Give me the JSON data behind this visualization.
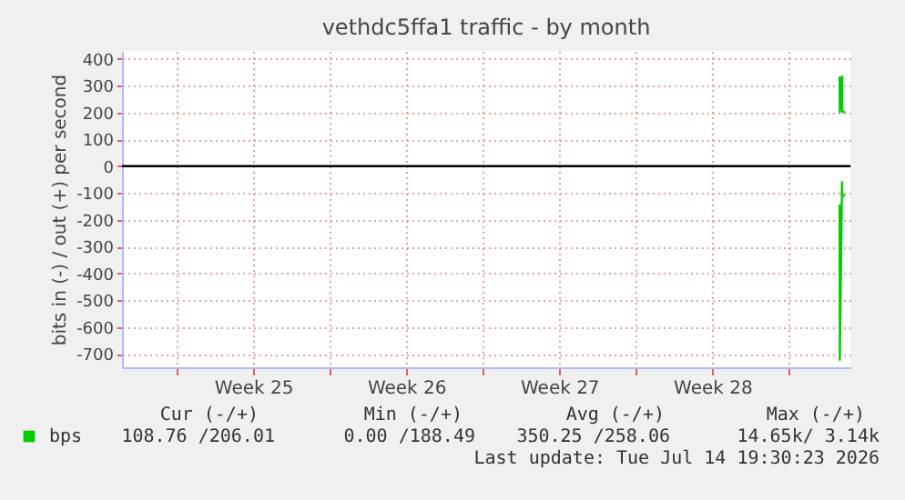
{
  "chart_data": {
    "type": "line",
    "title": "vethdc5ffa1 traffic - by month",
    "ylabel": "bits in (-) / out (+) per second",
    "x": [
      "2026-07-14T07:40",
      "2026-07-14T07:55",
      "2026-07-14T10:20",
      "2026-07-14T10:35",
      "2026-07-14T13:55"
    ],
    "series": [
      {
        "name": "bps",
        "color": "#00cc00",
        "values": [
          334,
          203,
          334,
          203,
          203
        ]
      },
      {
        "color": "#00cc00",
        "values": [
          -143,
          -722,
          -60,
          -110,
          -110
        ]
      }
    ],
    "xlim": [
      "2026-06-11T12:00",
      "2026-07-14T19:30"
    ],
    "xticks": [
      {
        "value": "2026-06-14",
        "label": null
      },
      {
        "value": "2026-06-17T12:00",
        "label": "Week 25"
      },
      {
        "value": "2026-06-21",
        "label": null
      },
      {
        "value": "2026-06-24T12:00",
        "label": "Week 26"
      },
      {
        "value": "2026-06-28",
        "label": null
      },
      {
        "value": "2026-07-01T12:00",
        "label": "Week 27"
      },
      {
        "value": "2026-07-05",
        "label": null
      },
      {
        "value": "2026-07-08T12:00",
        "label": "Week 28"
      },
      {
        "value": "2026-07-12",
        "label": null
      }
    ],
    "ylim": [
      -750,
      430
    ],
    "yticks": [
      -700,
      -600,
      -500,
      -400,
      -300,
      -200,
      -100,
      0,
      100,
      200,
      300,
      400
    ],
    "ref_lines": [
      {
        "axis": "y",
        "value": 0,
        "color": "#000000"
      }
    ],
    "grid": true,
    "legend": "bottom",
    "annotations": [
      "Cur (-/+)",
      "Min (-/+)",
      "Avg (-/+)",
      "Max (-/+)",
      "108.76 /206.01",
      "0.00 /188.49",
      "350.25 /258.06",
      "14.65k/  3.14k",
      "Last update: Tue Jul 14 19:30:23 2026"
    ]
  }
}
